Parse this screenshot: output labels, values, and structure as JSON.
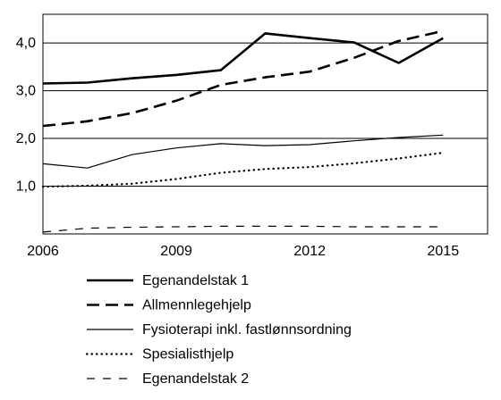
{
  "chart_data": {
    "type": "line",
    "x": [
      2006,
      2007,
      2008,
      2009,
      2010,
      2011,
      2012,
      2013,
      2014,
      2015
    ],
    "xticks": [
      "2006",
      "2009",
      "2012",
      "2015"
    ],
    "yticks": [
      "1,0",
      "2,0",
      "3,0",
      "4,0"
    ],
    "ylim": [
      0,
      4.6
    ],
    "grid": true,
    "legend_position": "bottom",
    "series": [
      {
        "name": "Egenandelstak 1",
        "style": "solid-thick",
        "values": [
          3.15,
          3.17,
          3.26,
          3.33,
          3.43,
          4.2,
          4.1,
          4.01,
          3.58,
          4.1
        ]
      },
      {
        "name": "Allmennlegehjelp",
        "style": "long-dash",
        "values": [
          2.26,
          2.36,
          2.53,
          2.79,
          3.12,
          3.28,
          3.4,
          3.69,
          4.04,
          4.25
        ]
      },
      {
        "name": "Fysioterapi inkl. fastlønnsordning",
        "style": "solid-thin",
        "values": [
          1.47,
          1.38,
          1.66,
          1.8,
          1.89,
          1.85,
          1.87,
          1.95,
          2.02,
          2.07
        ]
      },
      {
        "name": "Spesialisthjelp",
        "style": "dotted",
        "values": [
          0.99,
          1.01,
          1.05,
          1.15,
          1.28,
          1.36,
          1.4,
          1.48,
          1.58,
          1.7
        ]
      },
      {
        "name": "Egenandelstak 2",
        "style": "short-dash",
        "values": [
          0.04,
          0.12,
          0.14,
          0.15,
          0.16,
          0.16,
          0.16,
          0.15,
          0.15,
          0.15
        ]
      }
    ]
  }
}
